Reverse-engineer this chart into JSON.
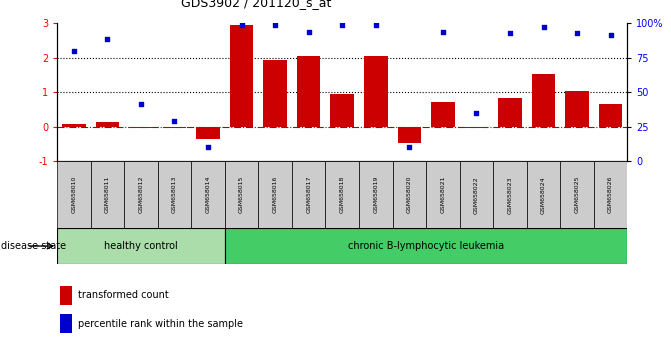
{
  "title": "GDS3902 / 201120_s_at",
  "samples": [
    "GSM658010",
    "GSM658011",
    "GSM658012",
    "GSM658013",
    "GSM658014",
    "GSM658015",
    "GSM658016",
    "GSM658017",
    "GSM658018",
    "GSM658019",
    "GSM658020",
    "GSM658021",
    "GSM658022",
    "GSM658023",
    "GSM658024",
    "GSM658025",
    "GSM658026"
  ],
  "bar_values": [
    0.08,
    0.13,
    -0.04,
    -0.04,
    -0.35,
    2.95,
    1.93,
    2.05,
    0.93,
    2.05,
    -0.48,
    0.72,
    -0.05,
    0.82,
    1.52,
    1.02,
    0.65
  ],
  "dot_values": [
    2.2,
    2.55,
    0.65,
    0.15,
    -0.58,
    2.95,
    2.95,
    2.75,
    2.95,
    2.95,
    -0.58,
    2.75,
    0.4,
    2.72,
    2.88,
    2.72,
    2.65
  ],
  "bar_color": "#cc0000",
  "dot_color": "#0000cc",
  "healthy_count": 5,
  "disease_count": 12,
  "ylim": [
    -1,
    3
  ],
  "right_ylim": [
    0,
    100
  ],
  "right_yticks": [
    0,
    25,
    50,
    75,
    100
  ],
  "right_yticklabels": [
    "0",
    "25",
    "50",
    "75",
    "100%"
  ],
  "left_yticks": [
    -1,
    0,
    1,
    2,
    3
  ],
  "dotted_lines": [
    1,
    2
  ],
  "zero_line_color": "#aa0000",
  "healthy_label": "healthy control",
  "disease_label": "chronic B-lymphocytic leukemia",
  "disease_state_label": "disease state",
  "healthy_bg": "#aaddaa",
  "disease_bg": "#44cc66",
  "legend_bar_label": "transformed count",
  "legend_dot_label": "percentile rank within the sample",
  "sample_box_color": "#cccccc"
}
